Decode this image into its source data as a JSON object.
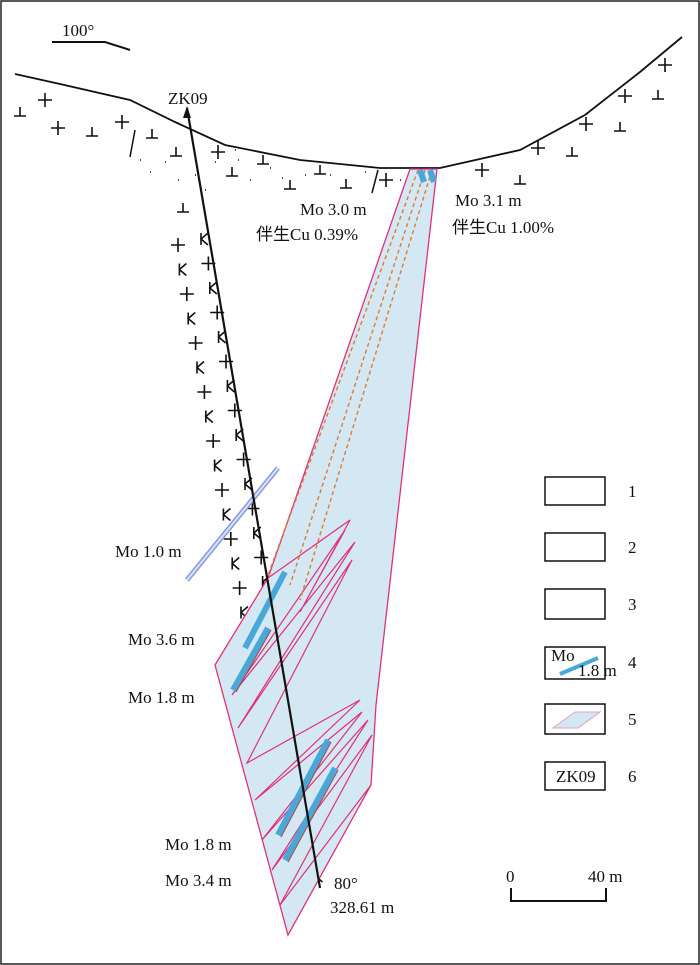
{
  "header": {
    "azimuth": "100°"
  },
  "drill_hole": {
    "label": "ZK09",
    "dip": "80°",
    "depth": "328.61 m"
  },
  "annotations": [
    "Mo  3.0 m",
    "伴生Cu 0.39%",
    "Mo 3.1 m",
    "伴生Cu 1.00%",
    "Mo 1.0 m",
    "Mo  3.6 m",
    "Mo 1.8 m",
    "Mo 1.8 m",
    "Mo  3.4 m"
  ],
  "legend": {
    "items": [
      "1",
      "2",
      "3",
      "4",
      "5",
      "6"
    ],
    "sample_mo": "Mo",
    "sample_thickness": "1.8 m",
    "sample_hole": "ZK09"
  },
  "scale": {
    "start": "0",
    "end": "40 m"
  }
}
